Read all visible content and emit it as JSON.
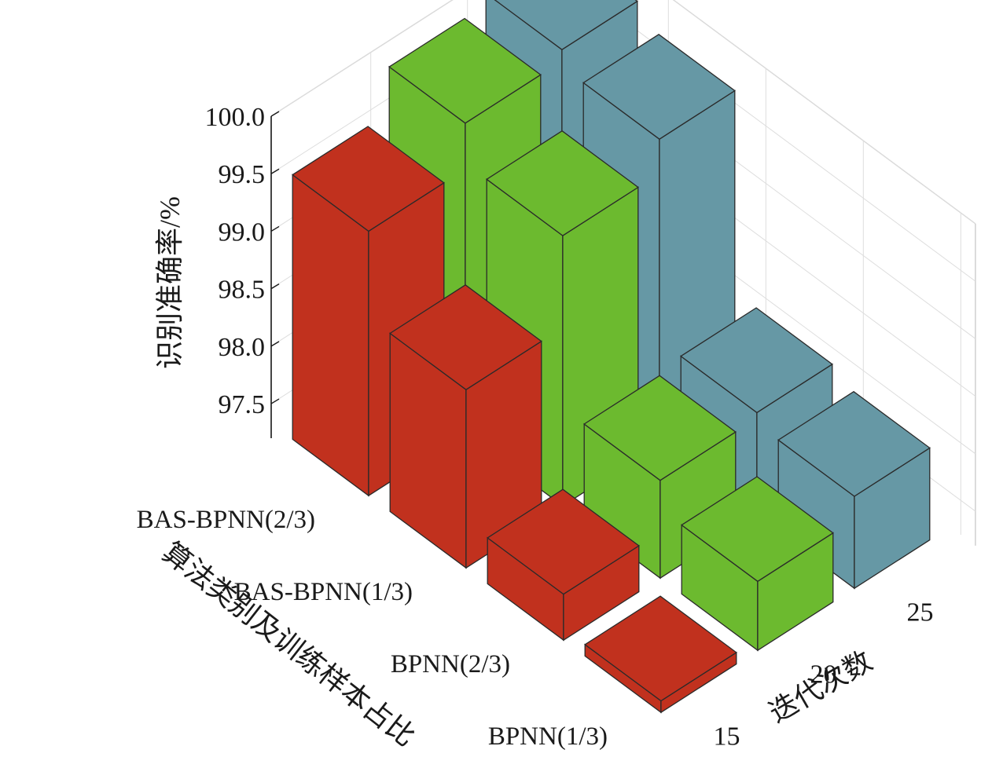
{
  "chart_data": {
    "type": "bar3d",
    "ylabel": "识别准确率/%",
    "xlabel": "迭代次数",
    "zlabel": "算法类别及训练样本占比",
    "zlim": [
      97.2,
      100.0
    ],
    "z_ticks": [
      "97.5",
      "98.0",
      "98.5",
      "99.0",
      "99.5",
      "100.0"
    ],
    "iterations": [
      "15",
      "20",
      "25"
    ],
    "categories": [
      "BAS-BPNN(2/3)",
      "BAS-BPNN(1/3)",
      "BPNN(2/3)",
      "BPNN(1/3)"
    ],
    "series": [
      {
        "iteration": "15",
        "values": [
          99.5,
          98.75,
          97.6,
          97.3
        ]
      },
      {
        "iteration": "20",
        "values": [
          99.9,
          99.55,
          98.05,
          97.8
        ]
      },
      {
        "iteration": "25",
        "values": [
          100.0,
          99.85,
          98.1,
          98.0
        ]
      }
    ],
    "colors": {
      "15": {
        "top": "#c1311e",
        "front": "#c1311e",
        "side": "#c1311e"
      },
      "20": {
        "top": "#6cba2f",
        "front": "#6cba2f",
        "side": "#6cba2f"
      },
      "25": {
        "top": "#6698a5",
        "front": "#6698a5",
        "side": "#6698a5"
      }
    },
    "grid": true
  }
}
